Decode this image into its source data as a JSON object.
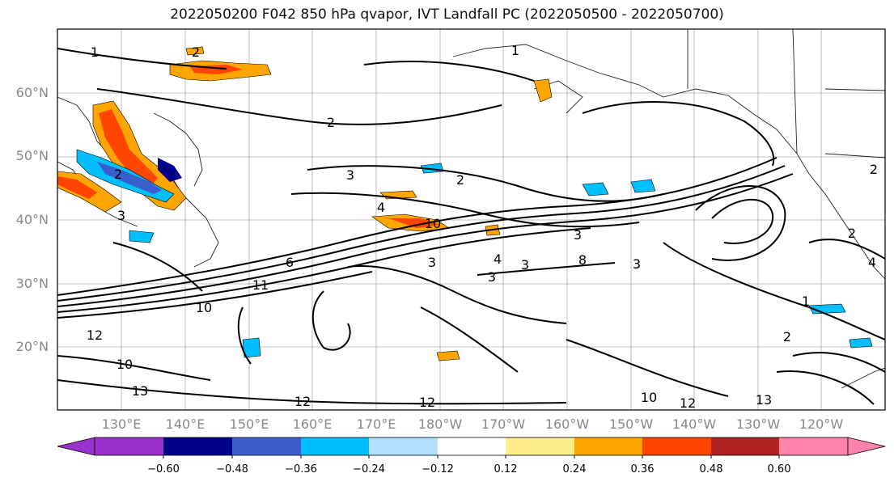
{
  "title": "2022050200 F042 850 hPa qvapor, IVT Landfall PC (2022050500 - 2022050700)",
  "lat_labels": [
    "60°N",
    "50°N",
    "40°N",
    "30°N",
    "20°N"
  ],
  "lon_labels": [
    "130°E",
    "140°E",
    "150°E",
    "160°E",
    "170°E",
    "180°W",
    "170°W",
    "160°W",
    "150°W",
    "140°W",
    "130°W",
    "120°W"
  ],
  "colorbar": {
    "colors": [
      "#9932CC",
      "#00008B",
      "#3A5FCD",
      "#00BFFF",
      "#B0E2FF",
      "#FFFFFF",
      "#FFEC8B",
      "#FFA500",
      "#FF4500",
      "#B22222",
      "#FF82AB"
    ],
    "tick_labels": [
      "−0.60",
      "−0.48",
      "−0.36",
      "−0.24",
      "−0.12",
      "0.12",
      "0.24",
      "0.36",
      "0.48",
      "0.60"
    ]
  },
  "contour_labels": [
    "3",
    "2",
    "3",
    "4",
    "10",
    "3",
    "3",
    "3",
    "2",
    "3",
    "1",
    "2",
    "3",
    "4",
    "11",
    "10",
    "12",
    "10",
    "13",
    "12",
    "12",
    "10",
    "12",
    "13",
    "2",
    "2",
    "1",
    "2",
    "1",
    "2",
    "4",
    "6",
    "8"
  ]
}
